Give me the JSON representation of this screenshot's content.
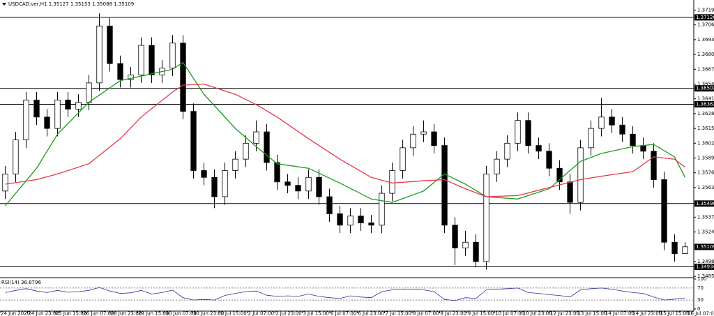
{
  "chart_data": {
    "type": "candlestick",
    "title": "USDCAD.ver,H1  1.35127 1.35153 1.35088 1.35109",
    "xlim": [
      -0.5,
      65.83
    ],
    "ylim": [
      1.34845,
      1.37248
    ],
    "open": [
      1.356,
      1.3575,
      1.3605,
      1.364,
      1.3625,
      1.3615,
      1.364,
      1.3632,
      1.3638,
      1.3655,
      1.3705,
      1.3672,
      1.3658,
      1.3662,
      1.3688,
      1.3662,
      1.3668,
      1.369,
      1.363,
      1.3578,
      1.3572,
      1.3555,
      1.3578,
      1.3588,
      1.3602,
      1.3612,
      1.3585,
      1.3568,
      1.3565,
      1.356,
      1.3572,
      1.3555,
      1.354,
      1.353,
      1.3538,
      1.3532,
      1.353,
      1.3558,
      1.3578,
      1.3598,
      1.361,
      1.3612,
      1.36,
      1.353,
      1.351,
      1.3515,
      1.3498,
      1.3575,
      1.3588,
      1.3602,
      1.3622,
      1.36,
      1.3595,
      1.358,
      1.3568,
      1.355,
      1.3598,
      1.3615,
      1.3625,
      1.3618,
      1.361,
      1.36,
      1.3595,
      1.357,
      1.3515,
      1.3505
    ],
    "high": [
      1.3582,
      1.3612,
      1.3647,
      1.3647,
      1.3632,
      1.3647,
      1.3647,
      1.3645,
      1.3662,
      1.3716,
      1.3712,
      1.3679,
      1.3669,
      1.3695,
      1.3695,
      1.3675,
      1.3697,
      1.3697,
      1.3637,
      1.3585,
      1.3579,
      1.3585,
      1.3595,
      1.3609,
      1.3622,
      1.3619,
      1.3592,
      1.3575,
      1.3572,
      1.3579,
      1.3579,
      1.3562,
      1.3547,
      1.3545,
      1.3545,
      1.3539,
      1.3565,
      1.3585,
      1.3605,
      1.3617,
      1.3622,
      1.3619,
      1.3607,
      1.3537,
      1.3525,
      1.3522,
      1.3582,
      1.3595,
      1.3609,
      1.3629,
      1.3629,
      1.3607,
      1.3602,
      1.3587,
      1.3575,
      1.3605,
      1.3622,
      1.3642,
      1.3632,
      1.3625,
      1.3617,
      1.3607,
      1.3602,
      1.3577,
      1.3522,
      1.3515
    ],
    "low": [
      1.3553,
      1.3568,
      1.3598,
      1.3618,
      1.3608,
      1.3608,
      1.3625,
      1.3625,
      1.3631,
      1.3648,
      1.3665,
      1.3651,
      1.3651,
      1.3655,
      1.3655,
      1.3655,
      1.3661,
      1.3623,
      1.3571,
      1.3565,
      1.3545,
      1.3548,
      1.3571,
      1.3581,
      1.3595,
      1.3578,
      1.3561,
      1.3558,
      1.3553,
      1.3553,
      1.3548,
      1.3533,
      1.3523,
      1.3523,
      1.3525,
      1.3523,
      1.3523,
      1.3551,
      1.3571,
      1.3591,
      1.3603,
      1.3593,
      1.3523,
      1.3495,
      1.3503,
      1.3493,
      1.3491,
      1.3568,
      1.3581,
      1.3595,
      1.3593,
      1.3588,
      1.3573,
      1.3561,
      1.354,
      1.3543,
      1.3591,
      1.3608,
      1.3611,
      1.3603,
      1.3593,
      1.3588,
      1.3563,
      1.3508,
      1.3498,
      1.3505
    ],
    "close": [
      1.3575,
      1.3605,
      1.364,
      1.3625,
      1.3615,
      1.364,
      1.3632,
      1.3638,
      1.3655,
      1.3705,
      1.3672,
      1.3658,
      1.3662,
      1.3688,
      1.3662,
      1.3668,
      1.369,
      1.363,
      1.3578,
      1.3572,
      1.3555,
      1.3578,
      1.3588,
      1.3602,
      1.3612,
      1.3585,
      1.3568,
      1.3565,
      1.356,
      1.3572,
      1.3555,
      1.354,
      1.353,
      1.3538,
      1.3532,
      1.353,
      1.3558,
      1.3578,
      1.3598,
      1.361,
      1.3612,
      1.36,
      1.353,
      1.351,
      1.3515,
      1.3498,
      1.3575,
      1.3588,
      1.3602,
      1.3622,
      1.36,
      1.3595,
      1.358,
      1.3568,
      1.355,
      1.3598,
      1.3615,
      1.3625,
      1.3618,
      1.361,
      1.36,
      1.3595,
      1.357,
      1.3515,
      1.3505,
      1.3511
    ],
    "series": [
      {
        "color": "#1a9a1a",
        "x": [
          0,
          3,
          5,
          8,
          11,
          13,
          16,
          17,
          19,
          22,
          24,
          26,
          29,
          32,
          35,
          37,
          40,
          42,
          44,
          46,
          49,
          52,
          55,
          57,
          60,
          62,
          64,
          65
        ],
        "values": [
          1.3547,
          1.358,
          1.361,
          1.3638,
          1.3657,
          1.3661,
          1.3667,
          1.3673,
          1.3645,
          1.3615,
          1.3599,
          1.3584,
          1.358,
          1.3567,
          1.3553,
          1.355,
          1.356,
          1.3575,
          1.3566,
          1.3555,
          1.3553,
          1.3562,
          1.3586,
          1.3593,
          1.3599,
          1.3601,
          1.359,
          1.3572
        ]
      },
      {
        "color": "#e8334a",
        "x": [
          0,
          3,
          5,
          8,
          11,
          13,
          16,
          17,
          19,
          22,
          24,
          26,
          29,
          32,
          35,
          37,
          40,
          42,
          44,
          46,
          49,
          52,
          55,
          57,
          60,
          62,
          64,
          65
        ],
        "values": [
          1.3566,
          1.357,
          1.3575,
          1.3584,
          1.3606,
          1.3625,
          1.3647,
          1.3653,
          1.3654,
          1.3645,
          1.3636,
          1.3625,
          1.3606,
          1.3588,
          1.3572,
          1.3567,
          1.3569,
          1.357,
          1.3562,
          1.3555,
          1.3556,
          1.3563,
          1.357,
          1.3573,
          1.3577,
          1.359,
          1.3588,
          1.3581
        ]
      }
    ],
    "levels": [
      1.37126,
      1.36502,
      1.36362,
      {
        "value": 1.3549,
        "label": "1.35490"
      },
      1.34934
    ],
    "current_price": 1.35109,
    "yticks": [
      {
        "value": 1.3719,
        "label": "1.37190"
      },
      {
        "value": 1.3706,
        "label": "1.37060"
      },
      {
        "value": 1.3693,
        "label": "1.36930"
      },
      {
        "value": 1.368,
        "label": "1.36800"
      },
      {
        "value": 1.3667,
        "label": "1.36670"
      },
      {
        "value": 1.3654,
        "label": "1.36540"
      },
      {
        "value": 1.3641,
        "label": "1.36410"
      },
      {
        "value": 1.3628,
        "label": "1.36280"
      },
      {
        "value": 1.3615,
        "label": "1.36150"
      },
      {
        "value": 1.3602,
        "label": "1.36020"
      },
      {
        "value": 1.3589,
        "label": "1.35890"
      },
      {
        "value": 1.3576,
        "label": "1.35760"
      },
      {
        "value": 1.3563,
        "label": "1.35630"
      },
      {
        "value": 1.3537,
        "label": "1.35370"
      },
      {
        "value": 1.3524,
        "label": "1.35240"
      },
      {
        "value": 1.3498,
        "label": "1.34980"
      },
      {
        "value": 1.3485,
        "label": "1.34850"
      }
    ],
    "xticks": [
      {
        "value": -0.5,
        "label": "24 Jun 2020"
      },
      {
        "value": 2.13,
        "label": "24 Jun 23:00"
      },
      {
        "value": 4.75,
        "label": "25 Jun 15:00"
      },
      {
        "value": 7.38,
        "label": "26 Jun 07:00"
      },
      {
        "value": 10.01,
        "label": "28 Jun 23:00"
      },
      {
        "value": 12.63,
        "label": "29 Jun 15:00"
      },
      {
        "value": 15.26,
        "label": "30 Jun 07:00"
      },
      {
        "value": 17.89,
        "label": "30 Jun 23:00"
      },
      {
        "value": 20.51,
        "label": "1 Jul 15:00"
      },
      {
        "value": 23.14,
        "label": "2 Jul 07:00"
      },
      {
        "value": 25.77,
        "label": "2 Jul 23:00"
      },
      {
        "value": 28.39,
        "label": "3 Jul 15:00"
      },
      {
        "value": 31.02,
        "label": "6 Jul 07:00"
      },
      {
        "value": 33.65,
        "label": "6 Jul 23:00"
      },
      {
        "value": 36.27,
        "label": "7 Jul 15:00"
      },
      {
        "value": 38.9,
        "label": "8 Jul 07:00"
      },
      {
        "value": 41.53,
        "label": "8 Jul 23:00"
      },
      {
        "value": 44.15,
        "label": "9 Jul 15:00"
      },
      {
        "value": 46.78,
        "label": "10 Jul 07:00"
      },
      {
        "value": 49.41,
        "label": "10 Jul 23:00"
      },
      {
        "value": 52.03,
        "label": "12 Jul 23:00"
      },
      {
        "value": 54.66,
        "label": "13 Jul 15:00"
      },
      {
        "value": 57.29,
        "label": "14 Jul 07:00"
      },
      {
        "value": 59.91,
        "label": "14 Jul 23:00"
      },
      {
        "value": 62.54,
        "label": "15 Jul 15:00"
      },
      {
        "value": 65.17,
        "label": "16 Jul 07:00"
      }
    ],
    "rsi": {
      "title": "RSI(14) 36.8796",
      "color": "#2b2ba0",
      "ylim": [
        0,
        100
      ],
      "yticks": [
        100,
        70,
        30,
        0
      ],
      "values": [
        55,
        62,
        68,
        60,
        55,
        62,
        56,
        58,
        62,
        72,
        60,
        52,
        54,
        62,
        50,
        55,
        63,
        38,
        30,
        32,
        30,
        45,
        52,
        58,
        60,
        46,
        42,
        44,
        42,
        50,
        42,
        38,
        35,
        44,
        40,
        38,
        58,
        64,
        66,
        65,
        64,
        58,
        32,
        28,
        38,
        35,
        64,
        66,
        68,
        70,
        55,
        52,
        48,
        45,
        40,
        64,
        68,
        70,
        66,
        60,
        55,
        52,
        40,
        30,
        33,
        37
      ]
    }
  }
}
